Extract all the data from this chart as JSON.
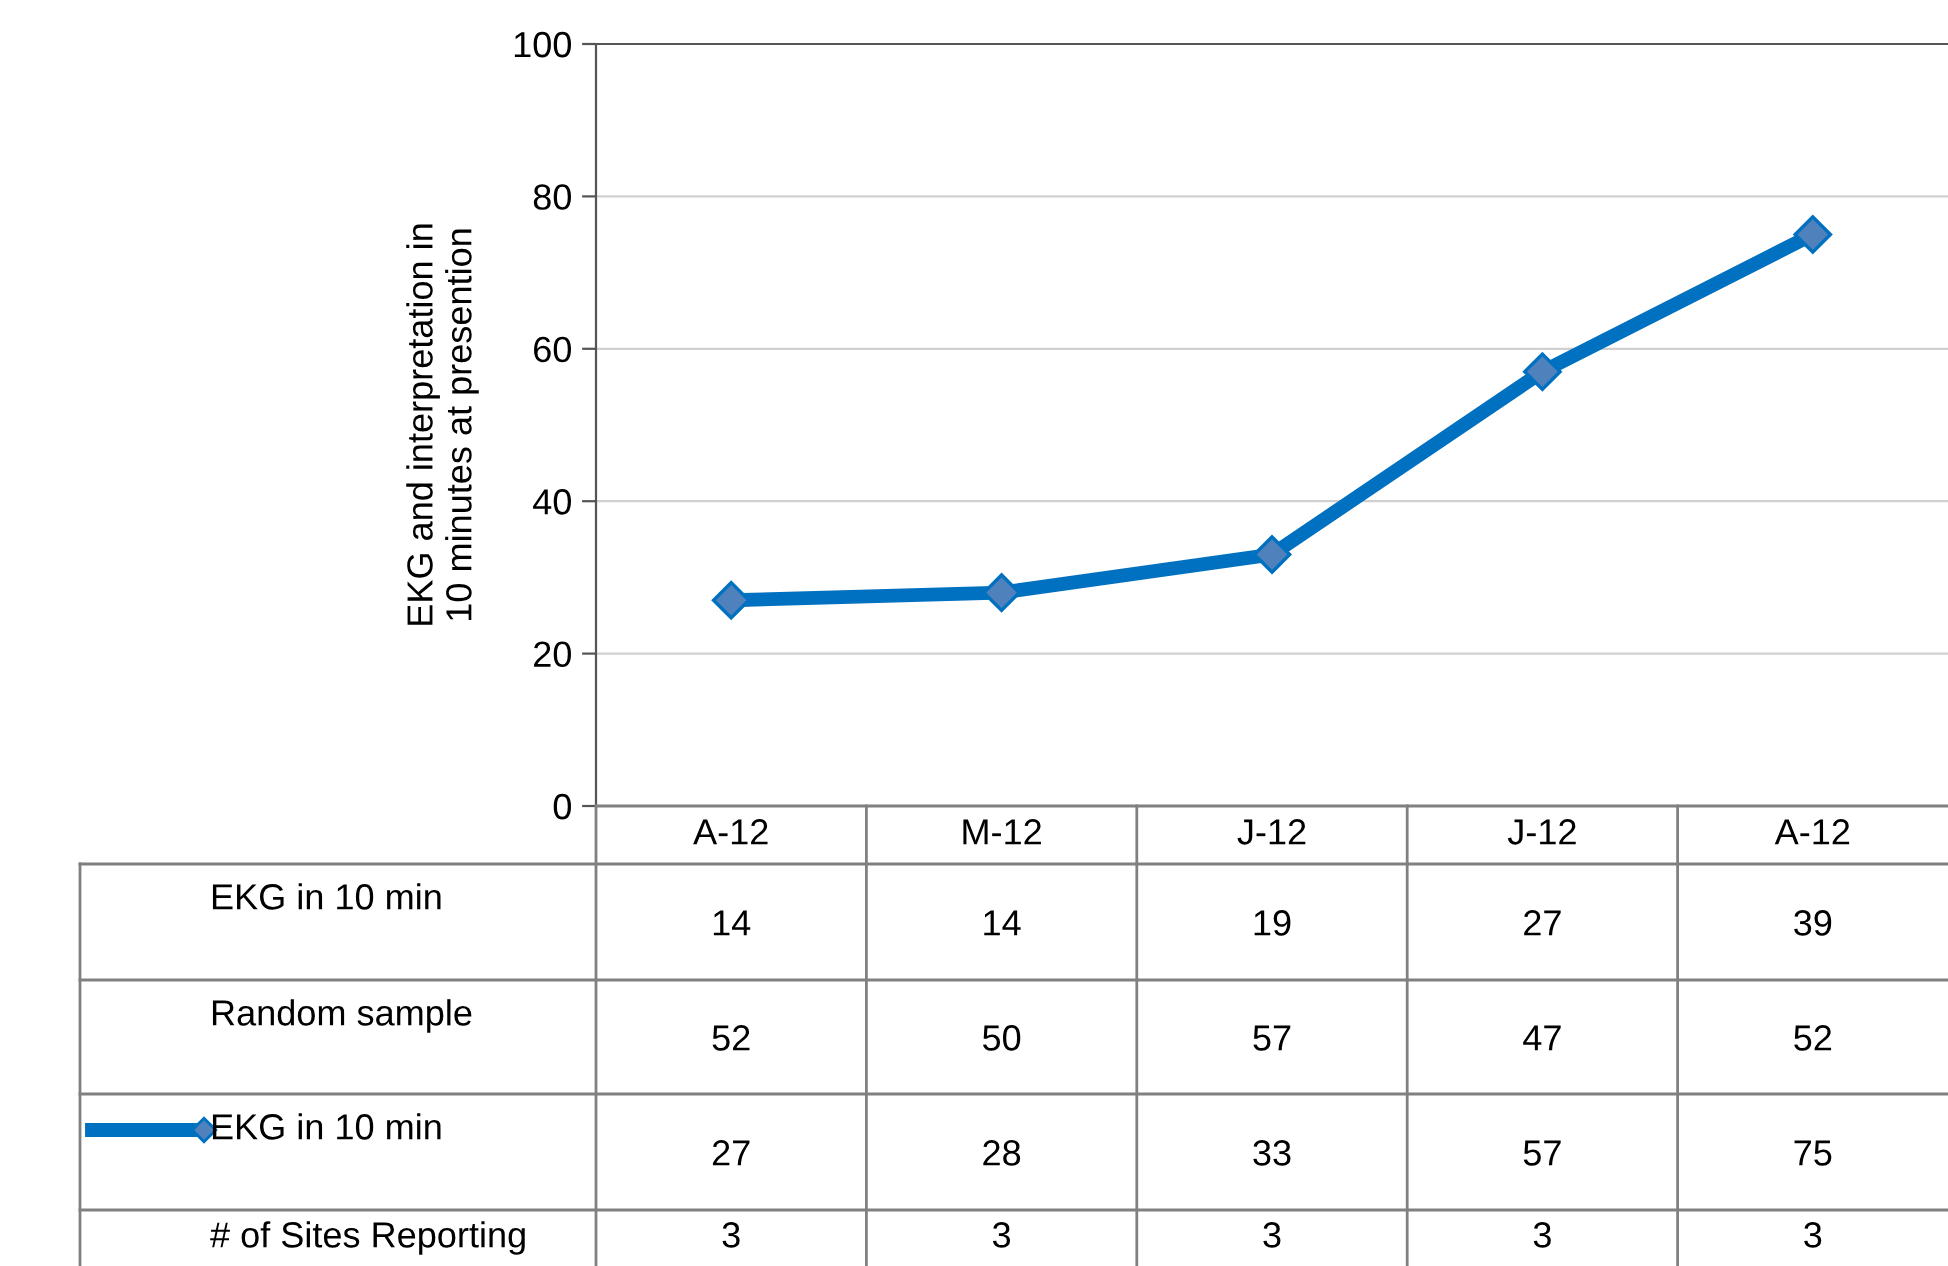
{
  "chart_data": {
    "type": "line",
    "ylabel": "EKG and interpretation in\n10 minutes at presention",
    "categories": [
      "A-12",
      "M-12",
      "J-12",
      "J-12",
      "A-12"
    ],
    "series": [
      {
        "name": "EKG in 10 min",
        "color": "#0070c0",
        "values": [
          27,
          28,
          33,
          57,
          75
        ]
      }
    ],
    "annotations": [
      "EKG in 10 min",
      "14",
      "14",
      "19",
      "27",
      "39",
      "Random sample",
      "52",
      "50",
      "57",
      "47",
      "52",
      "# of Sites Reporting",
      "3",
      "3",
      "3",
      "3",
      "3"
    ],
    "ylim": [
      0,
      100
    ],
    "yticks": [
      0,
      20,
      40,
      60,
      80,
      100
    ],
    "grid": "y",
    "marker": "diamond",
    "line_style": "solid",
    "data_labels": true
  }
}
